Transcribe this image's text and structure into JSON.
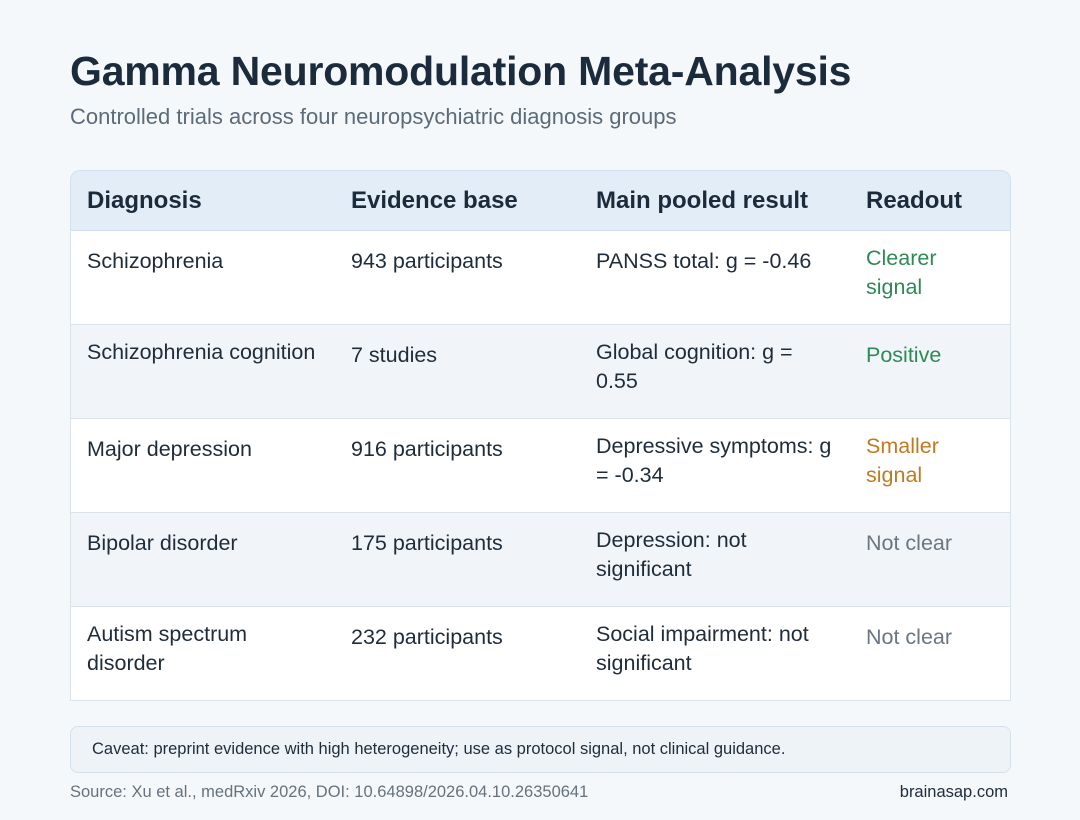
{
  "header": {
    "title": "Gamma Neuromodulation Meta-Analysis",
    "subtitle": "Controlled trials across four neuropsychiatric diagnosis groups"
  },
  "table": {
    "columns": [
      "Diagnosis",
      "Evidence base",
      "Main pooled result",
      "Readout"
    ],
    "rows": [
      {
        "diagnosis": "Schizophrenia",
        "evidence": "943 participants",
        "result": "PANSS total: g = -0.46",
        "readout": "Clearer signal",
        "readout_color": "#2e8a55"
      },
      {
        "diagnosis": "Schizophrenia cognition",
        "evidence": "7 studies",
        "result": "Global cognition: g = 0.55",
        "readout": "Positive",
        "readout_color": "#2e8a55"
      },
      {
        "diagnosis": "Major depression",
        "evidence": "916 participants",
        "result": "Depressive symptoms: g = -0.34",
        "readout": "Smaller signal",
        "readout_color": "#c07a1f"
      },
      {
        "diagnosis": "Bipolar disorder",
        "evidence": "175 participants",
        "result": "Depression: not significant",
        "readout": "Not clear",
        "readout_color": "#6a7682"
      },
      {
        "diagnosis": "Autism spectrum disorder",
        "evidence": "232 participants",
        "result": "Social impairment: not significant",
        "readout": "Not clear",
        "readout_color": "#6a7682"
      }
    ]
  },
  "caveat": "Caveat: preprint evidence with high heterogeneity; use as protocol signal, not clinical guidance.",
  "footer": {
    "source": "Source: Xu et al., medRxiv 2026, DOI: 10.64898/2026.04.10.26350641",
    "brand": "brainasap.com"
  },
  "colors": {
    "header_bg": "#e2edf7",
    "page_bg": "#f5f8fb",
    "positive": "#2e8a55",
    "smaller": "#c07a1f",
    "unclear": "#6a7682"
  }
}
